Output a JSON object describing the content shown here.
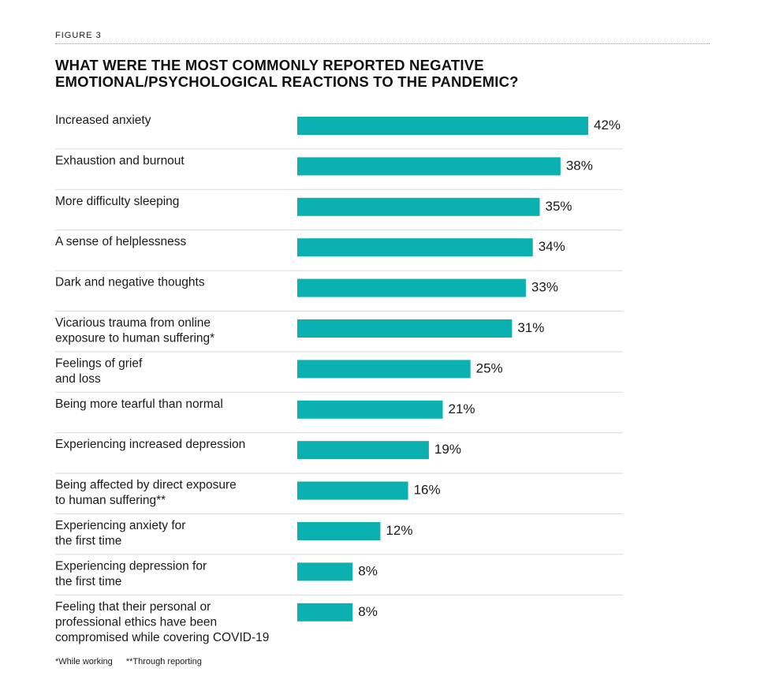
{
  "figure_label": "FIGURE 3",
  "title_line1": "WHAT WERE THE MOST COMMONLY REPORTED NEGATIVE",
  "title_line2": "EMOTIONAL/PSYCHOLOGICAL REACTIONS TO THE PANDEMIC?",
  "footnotes": [
    "*While working",
    "**Through reporting"
  ],
  "colors": {
    "bar": "#0bb0b0",
    "separator": "#d9d9d9"
  },
  "chart_data": {
    "type": "bar",
    "orientation": "horizontal",
    "unit": "%",
    "categories": [
      [
        "Increased anxiety"
      ],
      [
        "Exhaustion and burnout"
      ],
      [
        "More difficulty sleeping"
      ],
      [
        "A sense of helplessness"
      ],
      [
        "Dark and negative thoughts"
      ],
      [
        "Vicarious trauma from online",
        "exposure to human suffering*"
      ],
      [
        "Feelings of grief",
        "and loss"
      ],
      [
        "Being more tearful than normal"
      ],
      [
        "Experiencing increased depression"
      ],
      [
        "Being affected by direct exposure",
        "to human suffering**"
      ],
      [
        "Experiencing anxiety for",
        "the first time"
      ],
      [
        "Experiencing depression for",
        "the first time"
      ],
      [
        "Feeling that their personal or",
        "professional ethics have been",
        "compromised while covering COVID-19"
      ]
    ],
    "values": [
      42,
      38,
      35,
      34,
      33,
      31,
      25,
      21,
      19,
      16,
      12,
      8,
      8
    ],
    "value_labels": [
      "42%",
      "38%",
      "35%",
      "34%",
      "33%",
      "31%",
      "25%",
      "21%",
      "19%",
      "16%",
      "12%",
      "8%",
      "8%"
    ],
    "xlim": [
      0,
      42
    ],
    "grid": false,
    "legend": "none"
  }
}
